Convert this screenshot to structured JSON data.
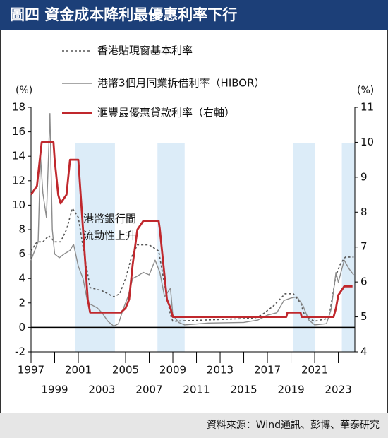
{
  "chart_data": {
    "type": "line",
    "title": "圖四  資金成本降利最優惠利率下行",
    "y_unit": "(%)",
    "y2_unit": "(%)",
    "annotation": [
      "港幣銀行間",
      "流動性上升"
    ],
    "source": "資料來源：Wind通訊、彭博、華泰研究",
    "xlim": [
      1997,
      2024.4
    ],
    "xticks": [
      1997,
      1999,
      2001,
      2003,
      2005,
      2007,
      2009,
      2011,
      2013,
      2015,
      2017,
      2019,
      2021,
      2023
    ],
    "ylim": [
      -2,
      18
    ],
    "yticks": [
      -2,
      0,
      2,
      4,
      6,
      8,
      10,
      12,
      14,
      16,
      18
    ],
    "y2lim": [
      4,
      11
    ],
    "y2ticks": [
      4,
      5,
      6,
      7,
      8,
      9,
      10,
      11
    ],
    "shaded_periods": [
      [
        2000.75,
        2004.1
      ],
      [
        2007.7,
        2010
      ],
      [
        2019.2,
        2021
      ],
      [
        2023.3,
        2024.4
      ]
    ],
    "shade_color": "#dcecf8",
    "series": [
      {
        "name": "香港貼現窗基本利率",
        "color": "#555555",
        "style": "dotted",
        "x": [
          1997,
          1997.5,
          1998,
          1998.5,
          1999,
          1999.5,
          2000,
          2000.5,
          2001,
          2001.5,
          2002,
          2003,
          2004,
          2004.5,
          2005,
          2005.5,
          2006,
          2007,
          2007.8,
          2008.3,
          2008.8,
          2009,
          2015.9,
          2016.5,
          2017.5,
          2018.5,
          2019.2,
          2019.8,
          2020.2,
          2021,
          2022.2,
          2022.5,
          2022.8,
          2023.2,
          2023.6,
          2024.3
        ],
        "values": [
          6.25,
          7,
          7,
          7.5,
          7,
          7,
          8,
          9.75,
          9,
          6,
          3.25,
          3,
          2.5,
          2.75,
          4,
          5.75,
          6.75,
          6.75,
          6.25,
          3.5,
          1,
          0.5,
          0.75,
          1,
          1.75,
          2.75,
          2.75,
          2,
          0.86,
          0.5,
          0.75,
          2.5,
          4.25,
          5.25,
          5.75,
          5.75
        ]
      },
      {
        "name": "港幣3個月同業拆借利率（HIBOR）",
        "color": "#8c8c8c",
        "style": "solid",
        "x": [
          1997,
          1997.6,
          1997.8,
          1998,
          1998.3,
          1998.6,
          1998.8,
          1999,
          1999.4,
          1999.8,
          2000.3,
          2000.6,
          2001,
          2001.4,
          2001.8,
          2002.2,
          2002.6,
          2003,
          2003.5,
          2004,
          2004.4,
          2004.8,
          2005.2,
          2005.6,
          2006,
          2006.5,
          2007,
          2007.5,
          2007.9,
          2008.3,
          2008.8,
          2009,
          2009.5,
          2010,
          2012,
          2015,
          2016.2,
          2017,
          2017.8,
          2018.4,
          2019,
          2019.5,
          2020,
          2020.5,
          2021,
          2022,
          2022.4,
          2022.8,
          2023,
          2023.5,
          2023.9,
          2024.3
        ],
        "values": [
          5.5,
          7,
          14,
          11,
          9,
          17.5,
          8,
          6,
          5.7,
          6,
          6.3,
          6.8,
          5,
          4,
          2,
          1.8,
          1.6,
          1.2,
          0.5,
          0.1,
          0.3,
          1.5,
          2.5,
          4,
          4.2,
          4.5,
          4.3,
          5.5,
          4.5,
          2.5,
          3.2,
          1,
          0.4,
          0.2,
          0.35,
          0.4,
          0.6,
          1,
          1.2,
          2.2,
          2.4,
          2.5,
          1.8,
          0.6,
          0.2,
          0.3,
          1.5,
          4.5,
          3.7,
          5.5,
          4.8,
          4.3
        ]
      },
      {
        "name": "滙豐最優惠貸款利率（右軸）",
        "color": "#c0282d",
        "style": "thick",
        "axis": "y2",
        "x": [
          1997,
          1997.5,
          1997.9,
          1998,
          1998.9,
          1999,
          1999.3,
          1999.5,
          2000,
          2000.3,
          2001,
          2001.2,
          2001.5,
          2001.8,
          2002,
          2004.6,
          2005,
          2005.3,
          2005.6,
          2006,
          2006.5,
          2007.8,
          2007.9,
          2008.2,
          2008.5,
          2008.8,
          2009,
          2018.6,
          2018.7,
          2019.8,
          2019.9,
          2022.6,
          2022.8,
          2023,
          2023.5,
          2024.2
        ],
        "values": [
          8.5,
          8.75,
          10,
          10,
          10,
          9.5,
          8.5,
          8.25,
          8.5,
          9.5,
          9.5,
          8.5,
          7,
          5.5,
          5.125,
          5.125,
          5.25,
          5.5,
          6.5,
          7.5,
          7.75,
          7.75,
          7.5,
          6.5,
          5.5,
          5.25,
          5,
          5,
          5.125,
          5.125,
          5,
          5,
          5.25,
          5.625,
          5.875,
          5.875
        ]
      }
    ]
  }
}
